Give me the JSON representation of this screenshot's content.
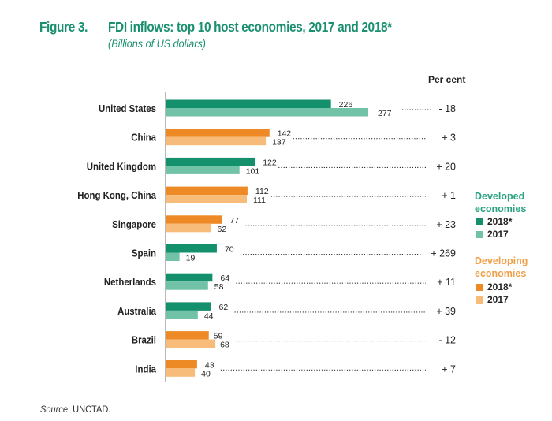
{
  "figure": {
    "number": "Figure 3.",
    "title": "FDI inflows: top 10 host economies, 2017 and 2018*",
    "subtitle": "(Billions of US dollars)",
    "percent_header": "Per cent",
    "source_label": "Source",
    "source_text": ": UNCTAD."
  },
  "legend": {
    "developed": {
      "title_line1": "Developed",
      "title_line2": "economies",
      "items": [
        {
          "label": "2018*",
          "color": "#15906d"
        },
        {
          "label": "2017",
          "color": "#72c2a8"
        }
      ],
      "title_color": "#2aa382"
    },
    "developing": {
      "title_line1": "Developing",
      "title_line2": "economies",
      "items": [
        {
          "label": "2018*",
          "color": "#ee8a25"
        },
        {
          "label": "2017",
          "color": "#f7bb7a"
        }
      ],
      "title_color": "#f0a04a"
    }
  },
  "chart_data": {
    "type": "bar",
    "orientation": "horizontal",
    "title": "FDI inflows: top 10 host economies, 2017 and 2018*",
    "subtitle": "(Billions of US dollars)",
    "xlabel": "",
    "ylabel": "",
    "xlim": [
      0,
      277
    ],
    "grid": false,
    "legend_position": "right",
    "categories": [
      "United States",
      "China",
      "United Kingdom",
      "Hong Kong, China",
      "Singapore",
      "Spain",
      "Netherlands",
      "Australia",
      "Brazil",
      "India"
    ],
    "groups": [
      "developed",
      "developing",
      "developed",
      "developing",
      "developing",
      "developed",
      "developed",
      "developed",
      "developing",
      "developing"
    ],
    "series": [
      {
        "name": "2018*",
        "values": [
          226,
          142,
          122,
          112,
          77,
          70,
          64,
          62,
          59,
          43
        ]
      },
      {
        "name": "2017",
        "values": [
          277,
          137,
          101,
          111,
          62,
          19,
          58,
          44,
          68,
          40
        ]
      }
    ],
    "percent_change": [
      "- 18",
      "+ 3",
      "+ 20",
      "+ 1",
      "+ 23",
      "+ 269",
      "+ 11",
      "+ 39",
      "- 12",
      "+ 7"
    ],
    "colors": {
      "developed_2018": "#15906d",
      "developed_2017": "#72c2a8",
      "developing_2018": "#ee8a25",
      "developing_2017": "#f7bb7a"
    }
  }
}
